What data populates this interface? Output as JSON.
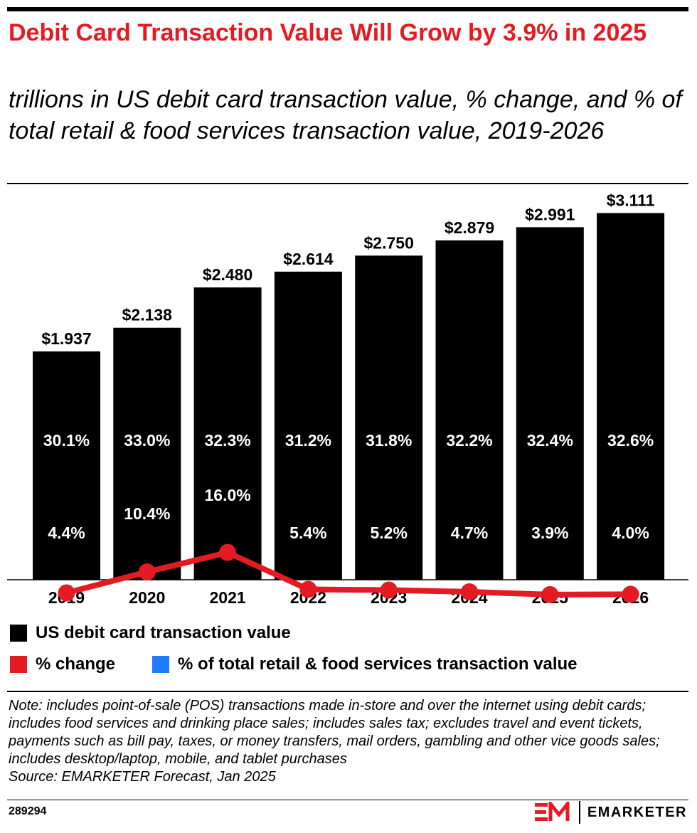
{
  "header": {
    "title": "Debit Card Transaction Value Will Grow by 3.9% in 2025",
    "subtitle": "trillions in US debit card transaction value, % change, and % of total retail & food services transaction value, 2019-2026"
  },
  "chart_data": {
    "type": "bar",
    "categories": [
      "2019",
      "2020",
      "2021",
      "2022",
      "2023",
      "2024",
      "2025",
      "2026"
    ],
    "series": [
      {
        "name": "US debit card transaction value",
        "type": "bar",
        "values": [
          1.937,
          2.138,
          2.48,
          2.614,
          2.75,
          2.879,
          2.991,
          3.111
        ],
        "labels": [
          "$1.937",
          "$2.138",
          "$2.480",
          "$2.614",
          "$2.750",
          "$2.879",
          "$2.991",
          "$3.111"
        ],
        "color": "#000000"
      },
      {
        "name": "% change",
        "type": "line",
        "values": [
          4.4,
          10.4,
          16.0,
          5.4,
          5.2,
          4.7,
          3.9,
          4.0
        ],
        "labels": [
          "4.4%",
          "10.4%",
          "16.0%",
          "5.4%",
          "5.2%",
          "4.7%",
          "3.9%",
          "4.0%"
        ],
        "color": "#e41b23"
      },
      {
        "name": "% of total retail & food services transaction value",
        "type": "line",
        "values": [
          30.1,
          33.0,
          32.3,
          31.2,
          31.8,
          32.2,
          32.4,
          32.6
        ],
        "labels": [
          "30.1%",
          "33.0%",
          "32.3%",
          "31.2%",
          "31.8%",
          "32.2%",
          "32.4%",
          "32.6%"
        ],
        "color": "#1f7bff"
      }
    ],
    "ylim": [
      0,
      3.2
    ],
    "legend_position": "bottom",
    "grid": false
  },
  "legend": {
    "bar_label": "US debit card transaction value",
    "change_label": "% change",
    "share_label": "% of total retail & food services transaction value"
  },
  "footer": {
    "note": "Note: includes point-of-sale (POS) transactions made in-store and over the internet using debit cards; includes food services and drinking place sales; includes sales tax; excludes travel and event tickets, payments such as bill pay, taxes, or money transfers, mail orders, gambling and other vice goods sales; includes desktop/laptop, mobile, and tablet purchases",
    "source": "Source: EMARKETER Forecast, Jan 2025",
    "chart_id": "289294",
    "brand_mark": "EM",
    "brand_name": "EMARKETER"
  }
}
